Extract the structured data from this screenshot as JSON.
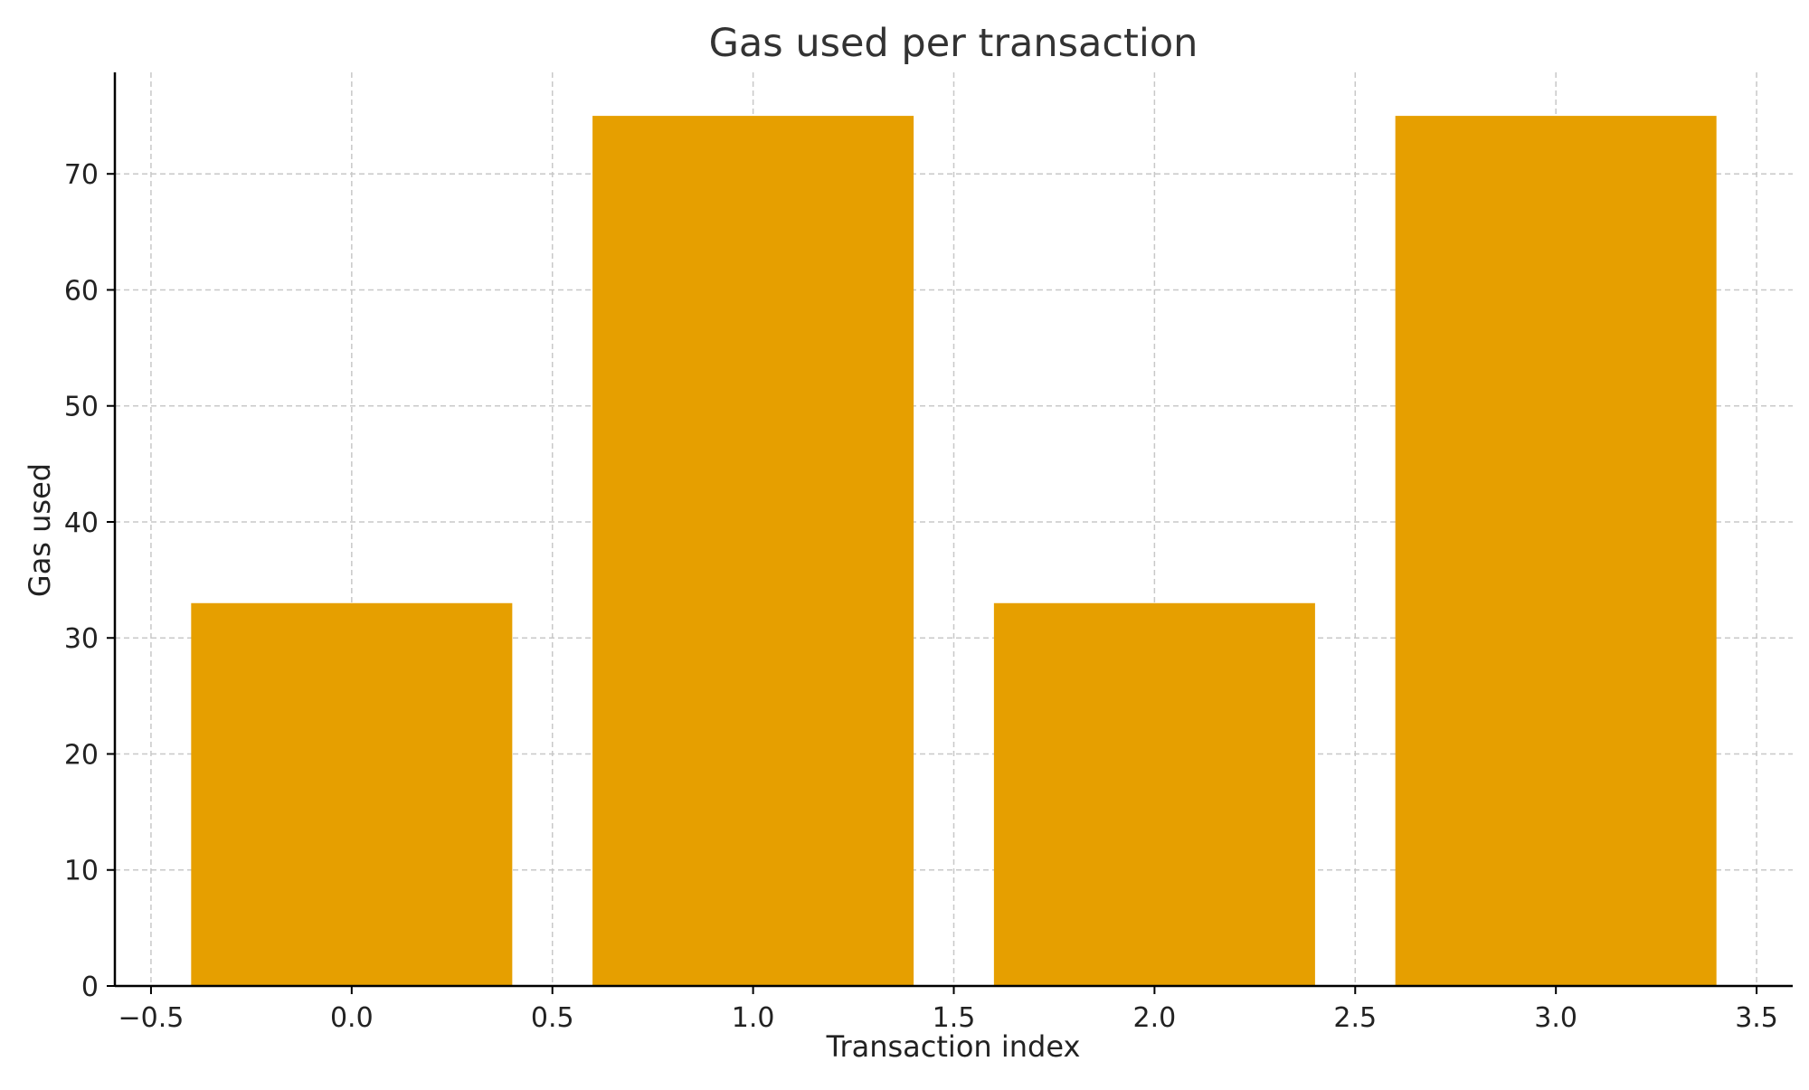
{
  "chart_data": {
    "type": "bar",
    "title": "Gas used per transaction",
    "xlabel": "Transaction index",
    "ylabel": "Gas used",
    "x": [
      0,
      1,
      2,
      3
    ],
    "values": [
      33,
      75,
      33,
      75
    ],
    "bar_width": 0.8,
    "xlim": [
      -0.59,
      3.59
    ],
    "ylim": [
      0,
      78.75
    ],
    "xticks": [
      -0.5,
      0.0,
      0.5,
      1.0,
      1.5,
      2.0,
      2.5,
      3.0,
      3.5
    ],
    "xtick_labels": [
      "−0.5",
      "0.0",
      "0.5",
      "1.0",
      "1.5",
      "2.0",
      "2.5",
      "3.0",
      "3.5"
    ],
    "yticks": [
      0,
      10,
      20,
      30,
      40,
      50,
      60,
      70
    ],
    "ytick_labels": [
      "0",
      "10",
      "20",
      "30",
      "40",
      "50",
      "60",
      "70"
    ],
    "grid": true,
    "bar_color": "#e69f00",
    "grid_color": "#c8c8c8",
    "axis_color": "#000000"
  }
}
